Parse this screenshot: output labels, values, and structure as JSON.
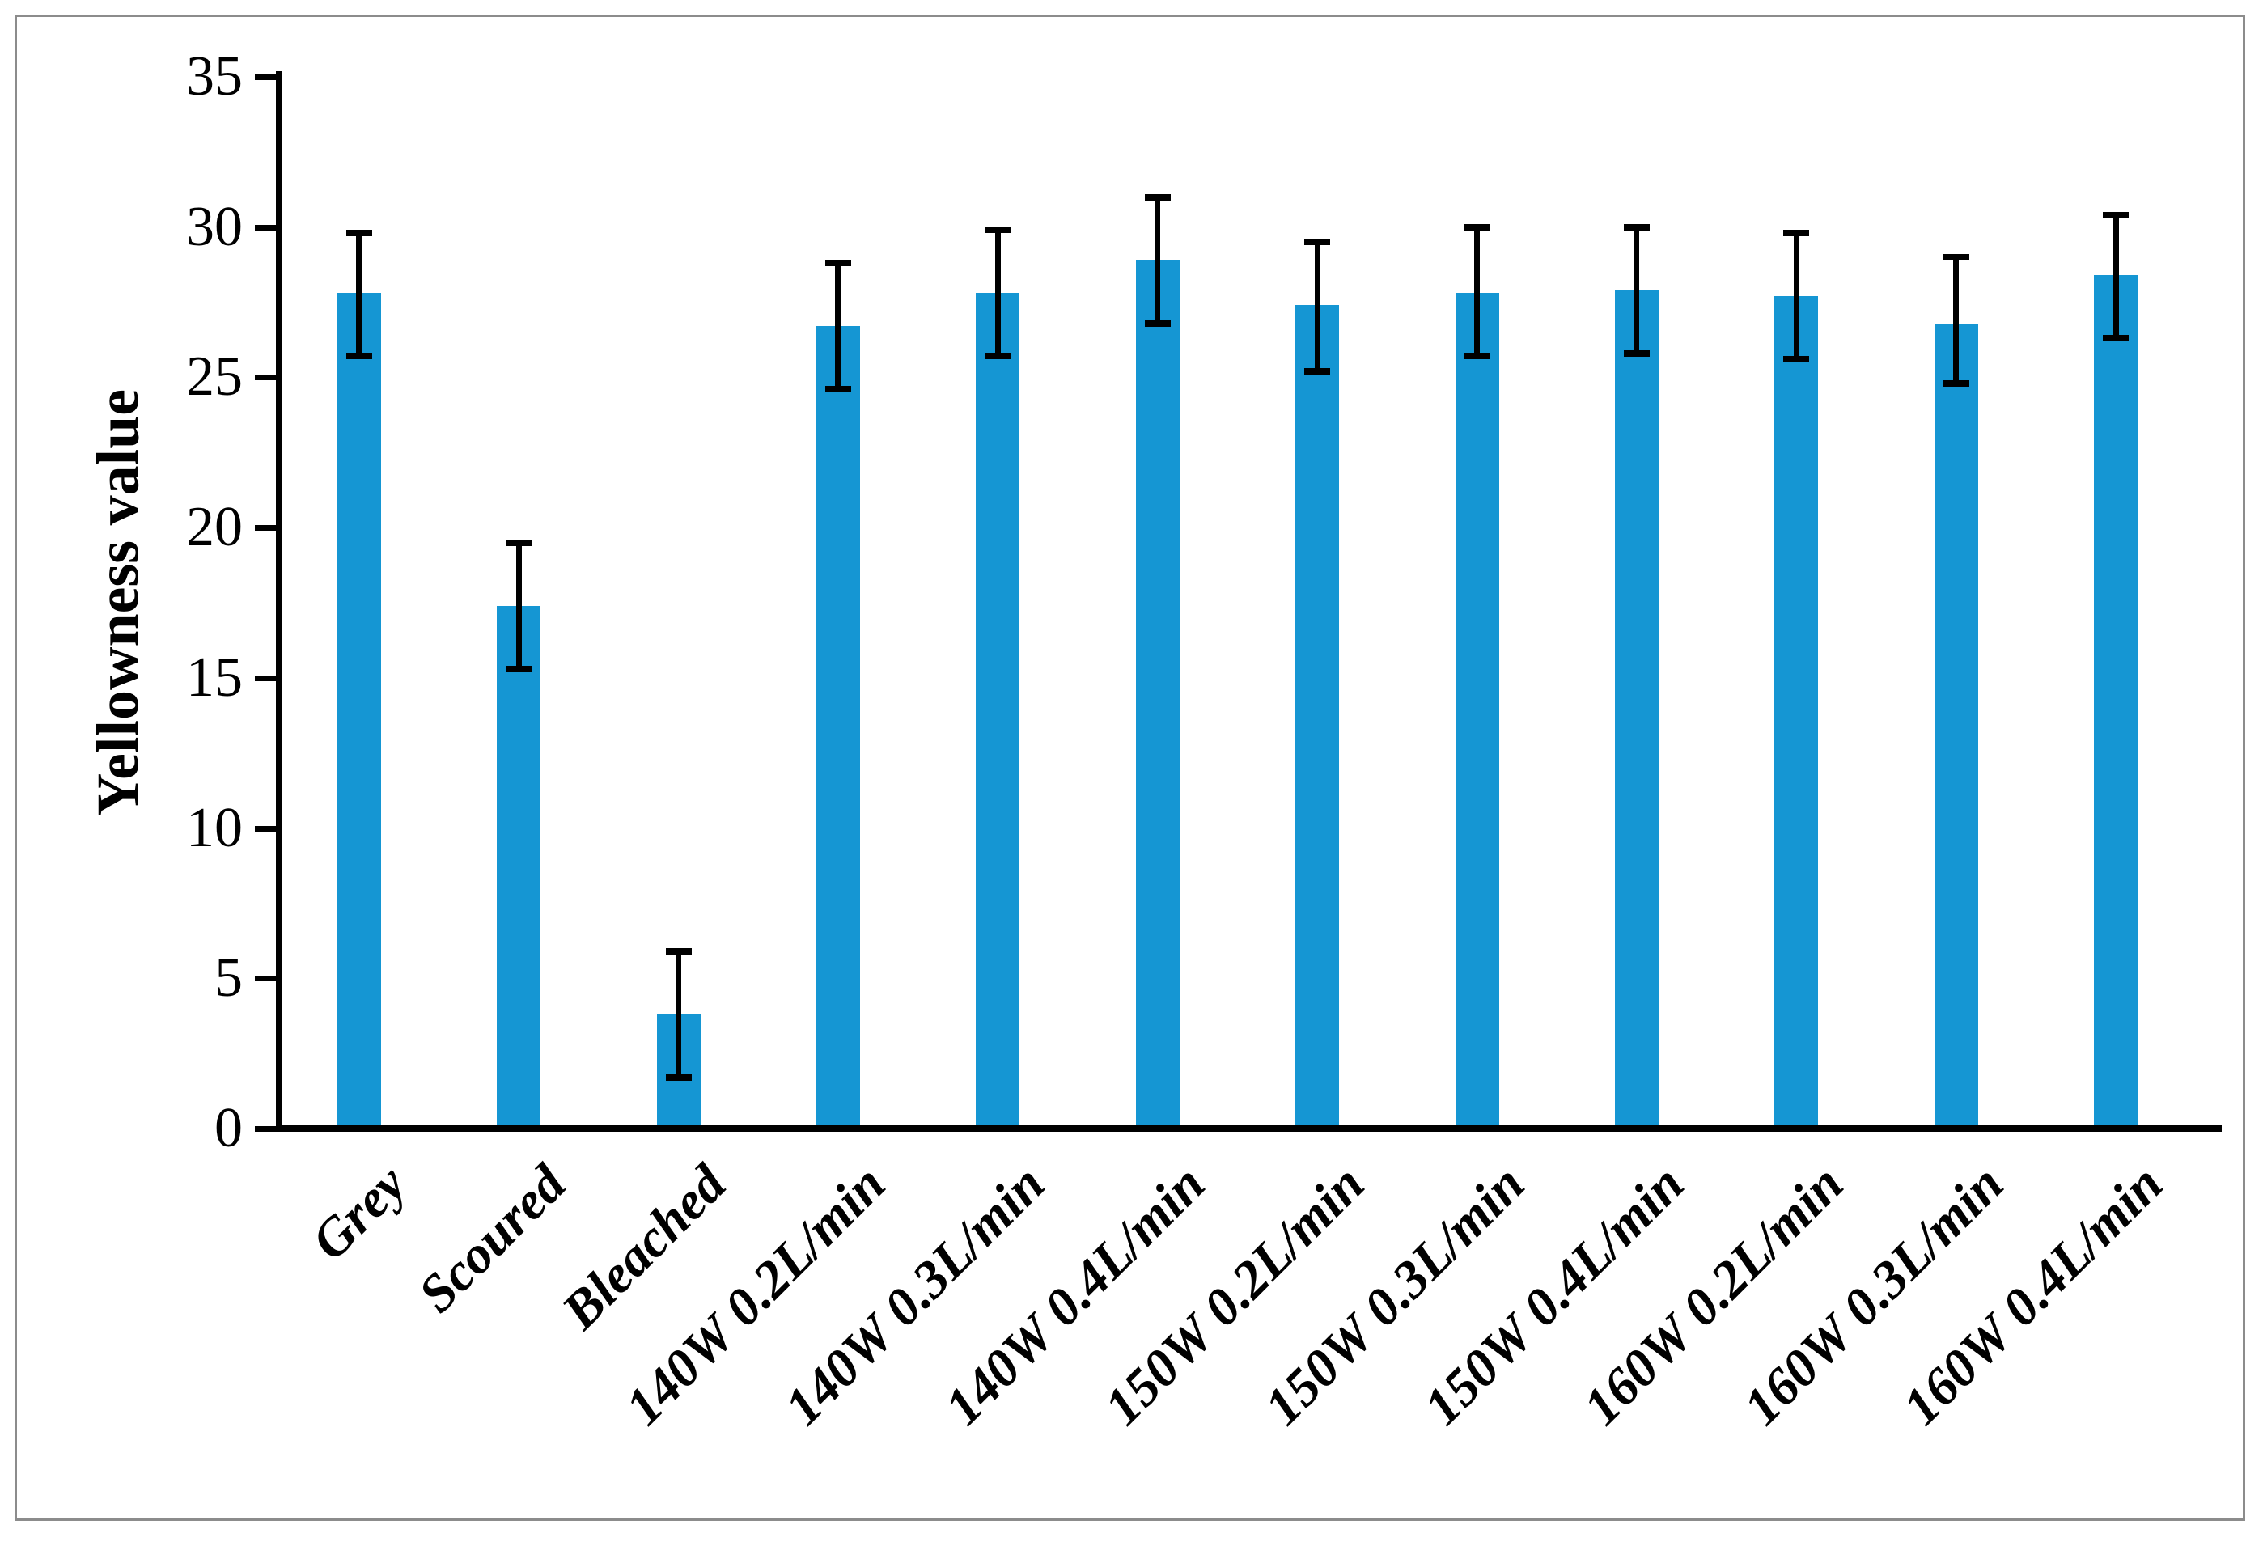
{
  "figure": {
    "background_color": "#ffffff",
    "border_color": "#8c8c8c"
  },
  "chart_data": {
    "type": "bar",
    "title": "",
    "xlabel": "",
    "ylabel": "Yellowness value",
    "ylim": [
      0,
      35
    ],
    "yticks": [
      0,
      5,
      10,
      15,
      20,
      25,
      30,
      35
    ],
    "grid": false,
    "legend": null,
    "bar_color": "#1596d3",
    "error_bar_color": "#000000",
    "axis_color": "#000000",
    "categories": [
      "Grey",
      "Scoured",
      "Bleached",
      "140W 0.2L/min",
      "140W 0.3L/min",
      "140W 0.4L/min",
      "150W 0.2L/min",
      "150W 0.3L/min",
      "150W 0.4L/min",
      "160W 0.2L/min",
      "160W 0.3L/min",
      "160W 0.4L/min"
    ],
    "values": [
      27.8,
      17.4,
      3.8,
      26.7,
      27.8,
      28.9,
      27.4,
      27.8,
      27.9,
      27.7,
      26.8,
      28.4
    ],
    "error_low": [
      25.7,
      15.3,
      1.7,
      24.6,
      25.7,
      26.8,
      25.2,
      25.7,
      25.8,
      25.6,
      24.8,
      26.3
    ],
    "error_high": [
      29.8,
      19.5,
      5.9,
      28.8,
      29.9,
      31.0,
      29.5,
      30.0,
      30.0,
      29.8,
      29.0,
      30.4
    ]
  }
}
